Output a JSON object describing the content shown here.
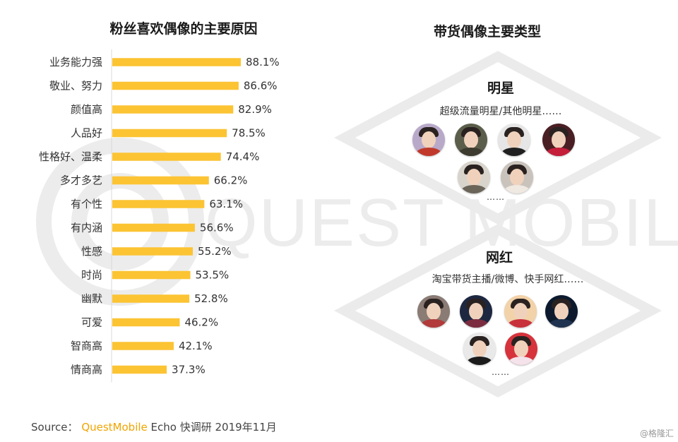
{
  "left_chart": {
    "title": "粉丝喜欢偶像的主要原因"
  },
  "chart_data": {
    "type": "bar",
    "orientation": "horizontal",
    "title": "粉丝喜欢偶像的主要原因",
    "categories": [
      "业务能力强",
      "敬业、努力",
      "颜值高",
      "人品好",
      "性格好、温柔",
      "多才多艺",
      "有个性",
      "有内涵",
      "性感",
      "时尚",
      "幽默",
      "可爱",
      "智商高",
      "情商高"
    ],
    "values": [
      88.1,
      86.6,
      82.9,
      78.5,
      74.4,
      66.2,
      63.1,
      56.6,
      55.2,
      53.5,
      52.8,
      46.2,
      42.1,
      37.3
    ],
    "value_labels": [
      "88.1%",
      "86.6%",
      "82.9%",
      "78.5%",
      "74.4%",
      "66.2%",
      "63.1%",
      "56.6%",
      "55.2%",
      "53.5%",
      "52.8%",
      "46.2%",
      "42.1%",
      "37.3%"
    ],
    "unit": "%",
    "xlim": [
      0,
      100
    ],
    "bar_color": "#fcc433",
    "grid": false,
    "legend": "none"
  },
  "right_panel": {
    "title": "带货偶像主要类型",
    "celebrity": {
      "title": "明星",
      "subtitle": "超级流量明星/其他明星……",
      "ellipsis": "……",
      "avatars": [
        {
          "icon": "avatar-icon",
          "bg": "#b8a9c9",
          "outfit": "#c0392b"
        },
        {
          "icon": "avatar-icon",
          "bg": "#5b5e4a",
          "outfit": "#3d3a30"
        },
        {
          "icon": "avatar-icon",
          "bg": "#e6e6e6",
          "outfit": "#202020"
        },
        {
          "icon": "avatar-icon",
          "bg": "#4a1f24",
          "outfit": "#c41e3a"
        },
        {
          "icon": "avatar-icon",
          "bg": "#d8d4cc",
          "outfit": "#6b6459"
        },
        {
          "icon": "avatar-icon",
          "bg": "#c9c3bc",
          "outfit": "#efe9e2"
        }
      ]
    },
    "influencer": {
      "title": "网红",
      "subtitle": "淘宝带货主播/微博、快手网红……",
      "ellipsis": "……",
      "avatars": [
        {
          "icon": "avatar-icon",
          "bg": "#8a7b74",
          "outfit": "#b23a3a"
        },
        {
          "icon": "avatar-icon",
          "bg": "#1d2740",
          "outfit": "#7b2d3f"
        },
        {
          "icon": "avatar-icon",
          "bg": "#f2d2a8",
          "outfit": "#c8303a"
        },
        {
          "icon": "avatar-icon",
          "bg": "#0d1a2e",
          "outfit": "#1f3350"
        },
        {
          "icon": "avatar-icon",
          "bg": "#e9e9e9",
          "outfit": "#1b1b1b"
        },
        {
          "icon": "avatar-icon",
          "bg": "#d6333c",
          "outfit": "#f4e3ea"
        }
      ]
    }
  },
  "watermark": {
    "text": "QUEST MOBILE",
    "color": "#ececec"
  },
  "footer": {
    "label": "Source：",
    "brand": "QuestMobile",
    "detail": "Echo 快调研 2019年11月"
  },
  "credit": "@格隆汇"
}
